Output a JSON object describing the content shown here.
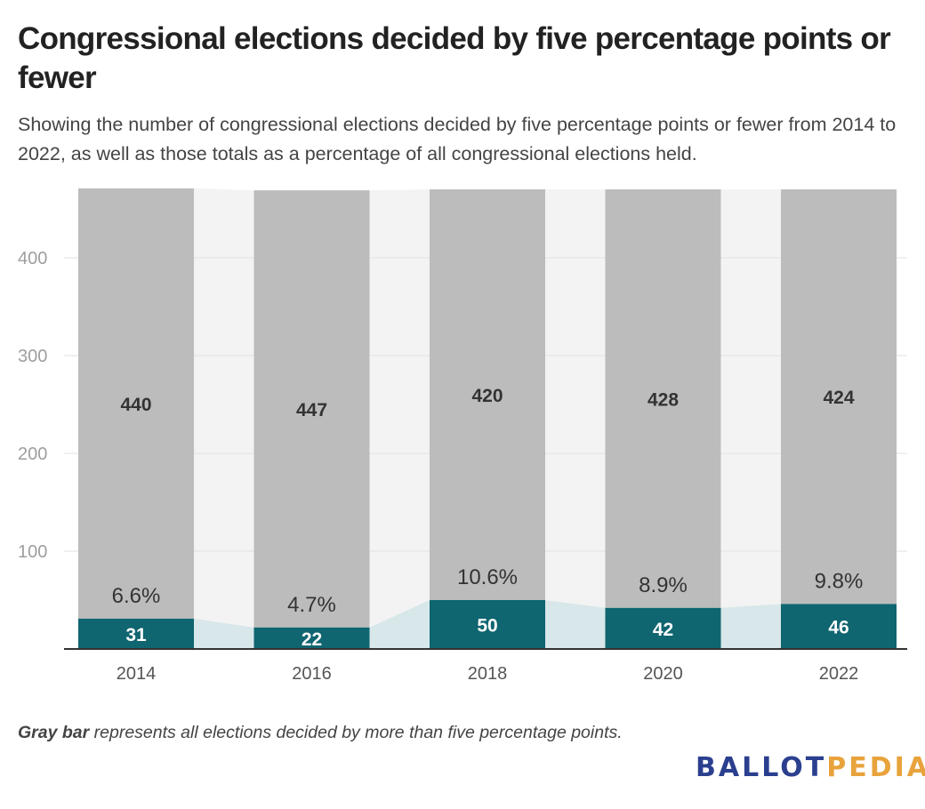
{
  "title": "Congressional elections decided by five percentage points or fewer",
  "subtitle": "Showing the number of congressional elections decided by five percentage points or fewer from 2014 to 2022, as well as those totals as a percentage of all congressional elections held.",
  "note": {
    "bold": "Gray bar",
    "rest": " represents all elections decided by more than five percentage points."
  },
  "logo": {
    "part1": "BALLOT",
    "part2": "PEDIA"
  },
  "colors": {
    "close": "#0f6570",
    "other": "#bcbcbc",
    "area_other": "#f3f3f3",
    "area_close": "#d8e7e9"
  },
  "chart_data": {
    "type": "bar",
    "stacked": true,
    "categories": [
      "2014",
      "2016",
      "2018",
      "2020",
      "2022"
    ],
    "series": [
      {
        "name": "",
        "values": [
          31,
          22,
          50,
          42,
          46
        ],
        "color": "#0f6570"
      },
      {
        "name": "",
        "values": [
          440,
          447,
          420,
          428,
          424
        ],
        "color": "#bcbcbc"
      }
    ],
    "percentages": [
      "6.6%",
      "4.7%",
      "10.6%",
      "8.9%",
      "9.8%"
    ],
    "yticks": [
      100,
      200,
      300,
      400
    ],
    "ylim": [
      0,
      471
    ],
    "grid": true,
    "legend": "none"
  }
}
